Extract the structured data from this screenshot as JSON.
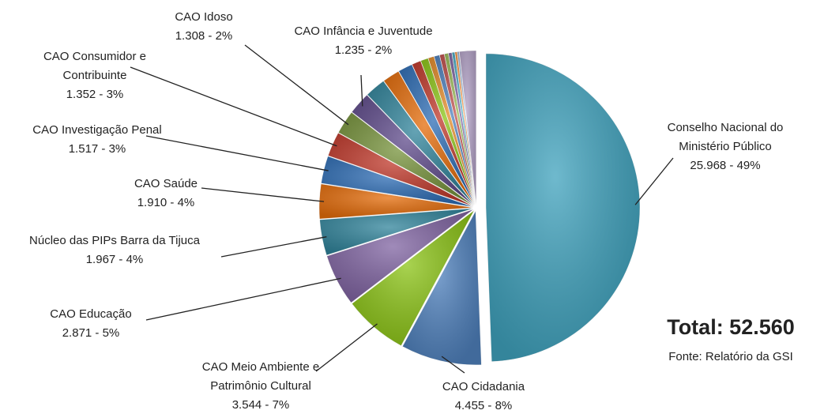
{
  "chart_data": {
    "type": "pie",
    "categories": [
      "Conselho Nacional do\nMinistério Público",
      "CAO Cidadania",
      "CAO Meio Ambiente e\nPatrimônio Cultural",
      "CAO Educação",
      "Núcleo das PIPs Barra da Tijuca",
      "CAO Saúde",
      "CAO Investigação Penal",
      "CAO Consumidor e\nContribuinte",
      "CAO Idoso",
      "CAO Infância e Juventude",
      null,
      null,
      null,
      null,
      null,
      null,
      null,
      null,
      null,
      null,
      null,
      null,
      null,
      null
    ],
    "values": [
      25968,
      4455,
      3544,
      2871,
      1967,
      1910,
      1517,
      1352,
      1308,
      1235,
      1150,
      950,
      800,
      500,
      420,
      330,
      300,
      260,
      220,
      190,
      160,
      130,
      100,
      923
    ],
    "value_labels": [
      "25.968 - 49%",
      "4.455 - 8%",
      "3.544 - 7%",
      "2.871 - 5%",
      "1.967 - 4%",
      "1.910 - 4%",
      "1.517 - 3%",
      "1.352 - 3%",
      "1.308 - 2%",
      "1.235 - 2%",
      null,
      null,
      null,
      null,
      null,
      null,
      null,
      null,
      null,
      null,
      null,
      null,
      null,
      null
    ],
    "colors": [
      "#3fa2bd",
      "#4f81bd",
      "#8cc417",
      "#8064a2",
      "#31849b",
      "#e46c0a",
      "#2e6db5",
      "#c0392b",
      "#77933c",
      "#5f4b8b",
      "#31849b",
      "#e46c0a",
      "#2e6db5",
      "#c0392b",
      "#8cc417",
      "#e48c2a",
      "#4f81bd",
      "#c0504d",
      "#9bbb59",
      "#8064a2",
      "#4bacc6",
      "#f79646",
      "#95b3d7",
      "#b3a2c7"
    ],
    "total_label": "Total: 52.560",
    "source": "Fonte: Relatório da GSI"
  }
}
